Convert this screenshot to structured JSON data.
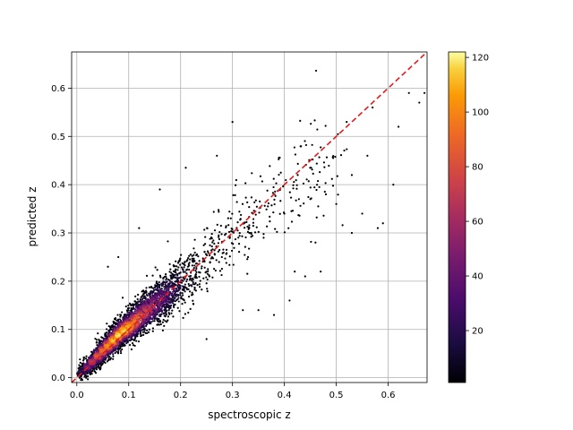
{
  "chart_data": {
    "type": "scatter",
    "title": "",
    "xlabel": "spectroscopic z",
    "ylabel": "predicted z",
    "xlim": [
      -0.01,
      0.675
    ],
    "ylim": [
      -0.01,
      0.675
    ],
    "xticks": [
      "0.0",
      "0.1",
      "0.2",
      "0.3",
      "0.4",
      "0.5",
      "0.6"
    ],
    "yticks": [
      "0.0",
      "0.1",
      "0.2",
      "0.3",
      "0.4",
      "0.5",
      "0.6"
    ],
    "xtick_values": [
      0.0,
      0.1,
      0.2,
      0.3,
      0.4,
      0.5,
      0.6
    ],
    "ytick_values": [
      0.0,
      0.1,
      0.2,
      0.3,
      0.4,
      0.5,
      0.6
    ],
    "grid": true,
    "colormap": "inferno",
    "colorbar": {
      "min": 1,
      "max": 122,
      "ticks": [
        20,
        40,
        60,
        80,
        100,
        120
      ],
      "tick_labels": [
        "20",
        "40",
        "60",
        "80",
        "100",
        "120"
      ]
    },
    "reference_line": {
      "style": "dashed",
      "color": "#e41a1c",
      "points": [
        [
          -0.01,
          -0.01
        ],
        [
          0.675,
          0.675
        ]
      ]
    },
    "density_core": [
      [
        0.01,
        0.012,
        25
      ],
      [
        0.02,
        0.022,
        50
      ],
      [
        0.03,
        0.033,
        70
      ],
      [
        0.04,
        0.045,
        85
      ],
      [
        0.05,
        0.055,
        95
      ],
      [
        0.06,
        0.066,
        105
      ],
      [
        0.07,
        0.077,
        115
      ],
      [
        0.08,
        0.088,
        120
      ],
      [
        0.09,
        0.097,
        118
      ],
      [
        0.1,
        0.105,
        110
      ],
      [
        0.11,
        0.115,
        100
      ],
      [
        0.12,
        0.125,
        90
      ],
      [
        0.13,
        0.135,
        80
      ],
      [
        0.14,
        0.143,
        70
      ],
      [
        0.15,
        0.152,
        60
      ],
      [
        0.16,
        0.16,
        50
      ],
      [
        0.17,
        0.17,
        40
      ],
      [
        0.18,
        0.178,
        30
      ],
      [
        0.19,
        0.188,
        22
      ],
      [
        0.2,
        0.197,
        15
      ],
      [
        0.21,
        0.205,
        10
      ],
      [
        0.22,
        0.215,
        6
      ],
      [
        0.24,
        0.235,
        4
      ],
      [
        0.26,
        0.255,
        3
      ],
      [
        0.28,
        0.275,
        2
      ],
      [
        0.3,
        0.3,
        2
      ],
      [
        0.33,
        0.325,
        2
      ],
      [
        0.36,
        0.355,
        1.5
      ],
      [
        0.4,
        0.385,
        1.5
      ],
      [
        0.44,
        0.42,
        1
      ],
      [
        0.48,
        0.45,
        1
      ]
    ],
    "outlier_points": [
      [
        0.3,
        0.53
      ],
      [
        0.27,
        0.46
      ],
      [
        0.21,
        0.435
      ],
      [
        0.16,
        0.39
      ],
      [
        0.12,
        0.31
      ],
      [
        0.08,
        0.25
      ],
      [
        0.06,
        0.23
      ],
      [
        0.25,
        0.08
      ],
      [
        0.32,
        0.14
      ],
      [
        0.35,
        0.14
      ],
      [
        0.38,
        0.13
      ],
      [
        0.41,
        0.16
      ],
      [
        0.44,
        0.21
      ],
      [
        0.47,
        0.22
      ],
      [
        0.53,
        0.3
      ],
      [
        0.58,
        0.31
      ],
      [
        0.59,
        0.32
      ],
      [
        0.61,
        0.4
      ],
      [
        0.62,
        0.52
      ],
      [
        0.66,
        0.57
      ],
      [
        0.67,
        0.59
      ],
      [
        0.64,
        0.59
      ],
      [
        0.57,
        0.56
      ],
      [
        0.52,
        0.53
      ],
      [
        0.5,
        0.36
      ],
      [
        0.46,
        0.28
      ],
      [
        0.42,
        0.22
      ],
      [
        0.36,
        0.29
      ],
      [
        0.33,
        0.25
      ],
      [
        0.55,
        0.34
      ],
      [
        0.4,
        0.34
      ],
      [
        0.45,
        0.37
      ],
      [
        0.48,
        0.38
      ],
      [
        0.53,
        0.42
      ],
      [
        0.56,
        0.46
      ]
    ]
  }
}
